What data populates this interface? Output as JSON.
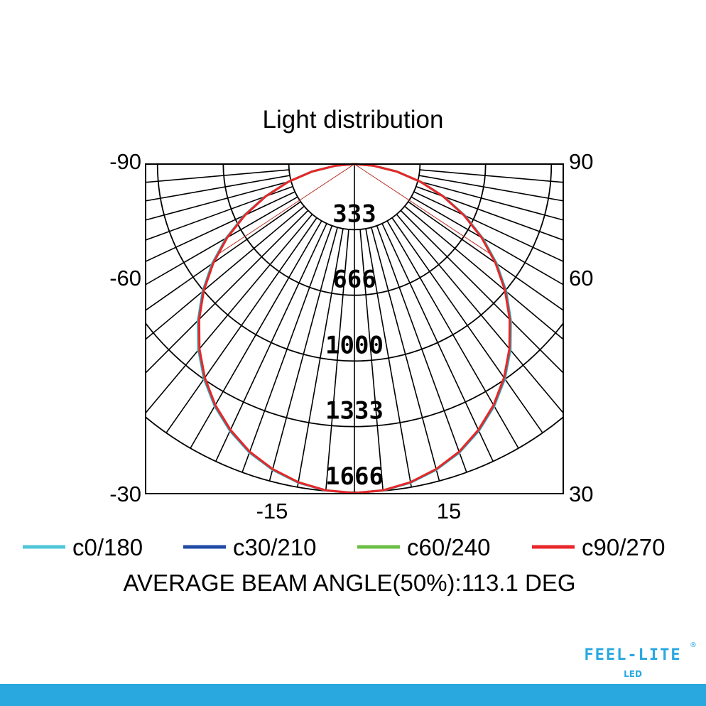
{
  "chart_data": {
    "type": "polar",
    "title": "Light distribution",
    "radial_ticks": [
      "333",
      "666",
      "1000",
      "1333",
      "1666"
    ],
    "radial_tick_values": [
      333,
      666,
      1000,
      1333,
      1666
    ],
    "left_labels": [
      "-90",
      "-60",
      "-30"
    ],
    "right_labels": [
      "90",
      "60",
      "30"
    ],
    "bottom_labels": [
      "-15",
      "15"
    ],
    "angles_deg": [
      0,
      5,
      10,
      15,
      20,
      25,
      30,
      35,
      40,
      45,
      50,
      55,
      60,
      65,
      70,
      75,
      80,
      85,
      90
    ],
    "series": [
      {
        "name": "c0/180",
        "color": "#4ec6d8",
        "values": [
          1670,
          1664,
          1643,
          1607,
          1559,
          1495,
          1420,
          1332,
          1233,
          1124,
          1007,
          883,
          753,
          619,
          484,
          351,
          220,
          98,
          0
        ]
      },
      {
        "name": "c30/210",
        "color": "#1f4aa6",
        "values": [
          1670,
          1663,
          1641,
          1605,
          1556,
          1492,
          1416,
          1328,
          1228,
          1119,
          1002,
          878,
          749,
          615,
          481,
          348,
          218,
          97,
          0
        ]
      },
      {
        "name": "c60/240",
        "color": "#6cbf45",
        "values": [
          1670,
          1663,
          1640,
          1604,
          1555,
          1490,
          1414,
          1326,
          1226,
          1117,
          1000,
          876,
          747,
          614,
          480,
          347,
          218,
          97,
          0
        ]
      },
      {
        "name": "c90/270",
        "color": "#e8262a",
        "values": [
          1670,
          1663,
          1640,
          1603,
          1554,
          1489,
          1413,
          1324,
          1224,
          1115,
          998,
          874,
          745,
          612,
          478,
          346,
          217,
          97,
          0
        ]
      }
    ],
    "beam_angle_deg": 113.1,
    "grid": true,
    "legend_placement": "bottom"
  },
  "beam_text": "AVERAGE BEAM ANGLE(50%):113.1 DEG",
  "logo": {
    "text": "FEEL-LITE",
    "sub": "LED",
    "mark": "®",
    "color": "#29a8e0"
  },
  "footer_bar_color": "#29a8e0"
}
